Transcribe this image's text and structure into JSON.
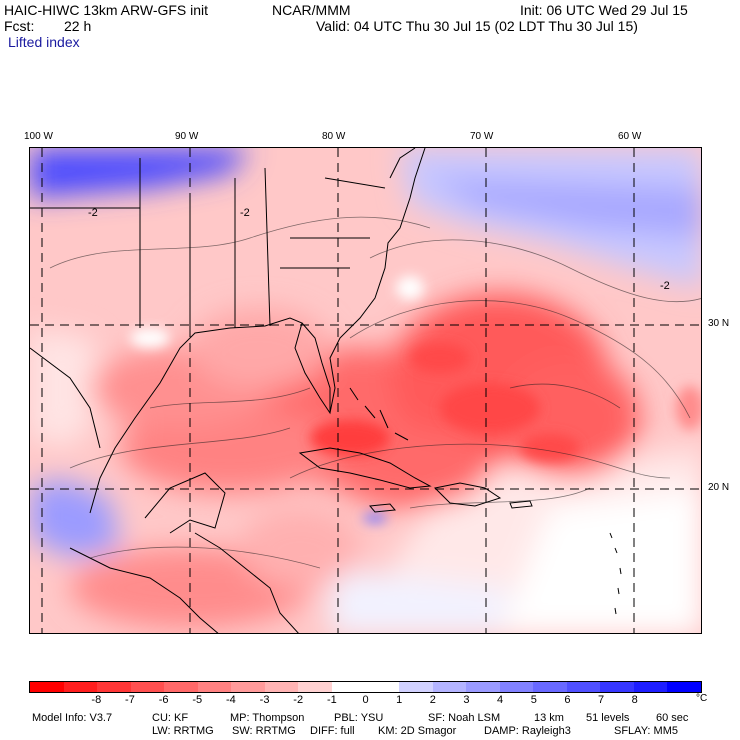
{
  "header": {
    "title": "HAIC-HIWC 13km ARW-GFS init",
    "org": "NCAR/MMM",
    "init": "Init: 06 UTC Wed 29 Jul 15",
    "fcst_label": "Fcst:",
    "fcst_value": "22 h",
    "valid": "Valid: 04 UTC Thu 30 Jul 15 (02 LDT Thu 30 Jul 15)",
    "field": "Lifted index"
  },
  "map": {
    "lon_labels": [
      "100 W",
      "90 W",
      "80 W",
      "70 W",
      "60 W"
    ],
    "lat_labels": [
      "30 N",
      "20 N"
    ]
  },
  "colorbar": {
    "ticks": [
      "-8",
      "-7",
      "-6",
      "-5",
      "-4",
      "-3",
      "-2",
      "-1",
      "0",
      "1",
      "2",
      "3",
      "4",
      "5",
      "6",
      "7",
      "8"
    ],
    "unit": "°C",
    "colors": [
      "#ff0000",
      "#ff1e1e",
      "#ff3737",
      "#ff5050",
      "#ff6969",
      "#ff8282",
      "#ff9b9b",
      "#ffb4b4",
      "#ffd2d2",
      "#ffffff",
      "#ffffff",
      "#d2d2ff",
      "#b4b4ff",
      "#9b9bff",
      "#8282ff",
      "#6969ff",
      "#5050ff",
      "#3737ff",
      "#1e1eff",
      "#0000ff"
    ]
  },
  "model_info": {
    "line1": {
      "model": "Model Info: V3.7",
      "cu": "CU: KF",
      "mp": "MP: Thompson",
      "pbl": "PBL: YSU",
      "sf": "SF: Noah LSM",
      "res": "13 km",
      "levels": "51 levels",
      "dt": "60 sec"
    },
    "line2": {
      "lw": "LW: RRTMG",
      "sw": "SW: RRTMG",
      "diff": "DIFF: full",
      "km": "KM: 2D Smagor",
      "damp": "DAMP: Rayleigh3",
      "sflay": "SFLAY: MM5"
    }
  }
}
